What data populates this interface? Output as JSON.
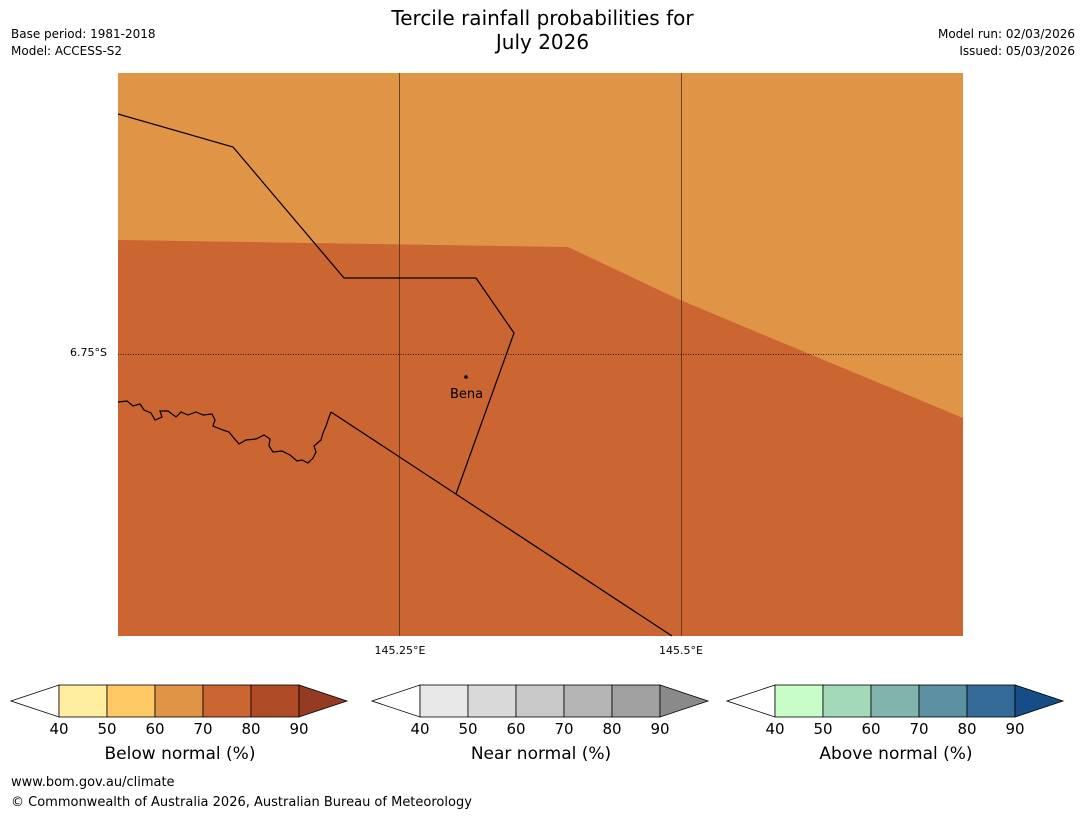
{
  "title": {
    "line1": "Tercile rainfall probabilities for",
    "line2": "July 2026"
  },
  "meta": {
    "base_period": "Base period: 1981-2018",
    "model": "Model: ACCESS-S2",
    "model_run": "Model run: 02/03/2026",
    "issued": "Issued: 05/03/2026"
  },
  "map": {
    "lat_label": "6.75°S",
    "lon_labels": [
      "145.25°E",
      "145.5°E"
    ],
    "place": "Bena",
    "colors": {
      "region_light": "#e09446",
      "region_dark": "#cb6531"
    }
  },
  "legends": [
    {
      "label": "Below normal (%)",
      "ticks": [
        "40",
        "50",
        "60",
        "70",
        "80",
        "90"
      ],
      "colors": [
        "#ffeda0",
        "#fec965",
        "#e09446",
        "#cb6531",
        "#b04b28",
        "#963b23"
      ]
    },
    {
      "label": "Near normal (%)",
      "ticks": [
        "40",
        "50",
        "60",
        "70",
        "80",
        "90"
      ],
      "colors": [
        "#e8e8e8",
        "#d9d9d9",
        "#c8c8c8",
        "#b4b4b4",
        "#a0a0a0",
        "#8a8a8a"
      ]
    },
    {
      "label": "Above normal (%)",
      "ticks": [
        "40",
        "50",
        "60",
        "70",
        "80",
        "90"
      ],
      "colors": [
        "#c8fdc8",
        "#a3d8b9",
        "#80b4ad",
        "#5b91a0",
        "#336a98",
        "#174d87"
      ]
    }
  ],
  "footer": {
    "url": "www.bom.gov.au/climate",
    "copyright": "© Commonwealth of Australia 2026, Australian Bureau of Meteorology"
  }
}
